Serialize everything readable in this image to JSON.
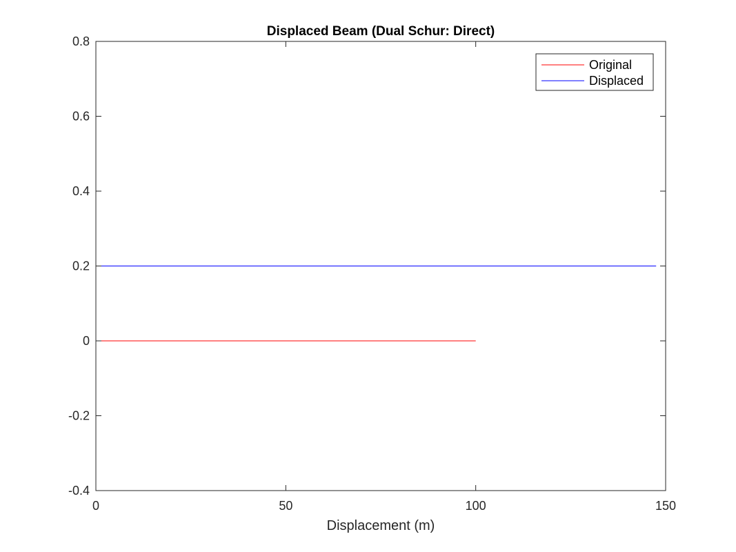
{
  "chart_data": {
    "type": "line",
    "title": "Displaced Beam (Dual Schur: Direct)",
    "xlabel": "Displacement (m)",
    "ylabel": "",
    "xlim": [
      0,
      150
    ],
    "ylim": [
      -0.4,
      0.8
    ],
    "xticks": [
      0,
      50,
      100,
      150
    ],
    "yticks": [
      -0.4,
      -0.2,
      0,
      0.2,
      0.4,
      0.6,
      0.8
    ],
    "xtick_labels": [
      "0",
      "50",
      "100",
      "150"
    ],
    "ytick_labels": [
      "-0.4",
      "-0.2",
      "0",
      "0.2",
      "0.4",
      "0.6",
      "0.8"
    ],
    "grid": false,
    "legend_position": "top-right",
    "series": [
      {
        "name": "Original",
        "color": "#ff0000",
        "x": [
          0,
          100
        ],
        "y": [
          0,
          0
        ]
      },
      {
        "name": "Displaced",
        "color": "#0000ff",
        "x": [
          0,
          147.5
        ],
        "y": [
          0.2,
          0.2
        ]
      }
    ]
  }
}
